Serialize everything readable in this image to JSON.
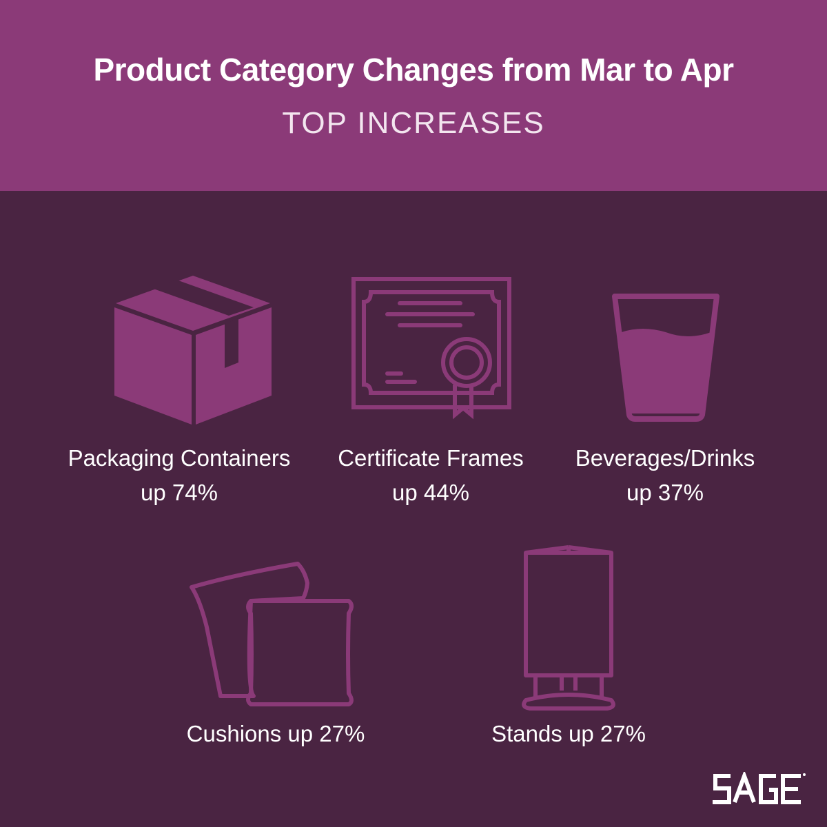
{
  "header": {
    "title": "Product Category Changes from Mar to Apr",
    "subtitle": "TOP INCREASES"
  },
  "categories": [
    {
      "name": "Packaging Containers",
      "change_text": "up 74%",
      "change_pct": 74,
      "icon": "box-icon"
    },
    {
      "name": "Certificate Frames",
      "change_text": "up 44%",
      "change_pct": 44,
      "icon": "certificate-icon"
    },
    {
      "name": "Beverages/Drinks",
      "change_text": "up 37%",
      "change_pct": 37,
      "icon": "glass-icon"
    },
    {
      "name": "Cushions",
      "change_text": "up 27%",
      "change_pct": 27,
      "icon": "cushions-icon"
    },
    {
      "name": "Stands",
      "change_text": "up 27%",
      "change_pct": 27,
      "icon": "stand-icon"
    }
  ],
  "labels": {
    "cushions": "Cushions up 27%",
    "stands": "Stands up 27%"
  },
  "brand": {
    "logo_text": "SAGE",
    "colors": {
      "header": "#8b3a78",
      "background": "#4a2442",
      "icon": "#8b3a78",
      "text": "#ffffff"
    }
  }
}
